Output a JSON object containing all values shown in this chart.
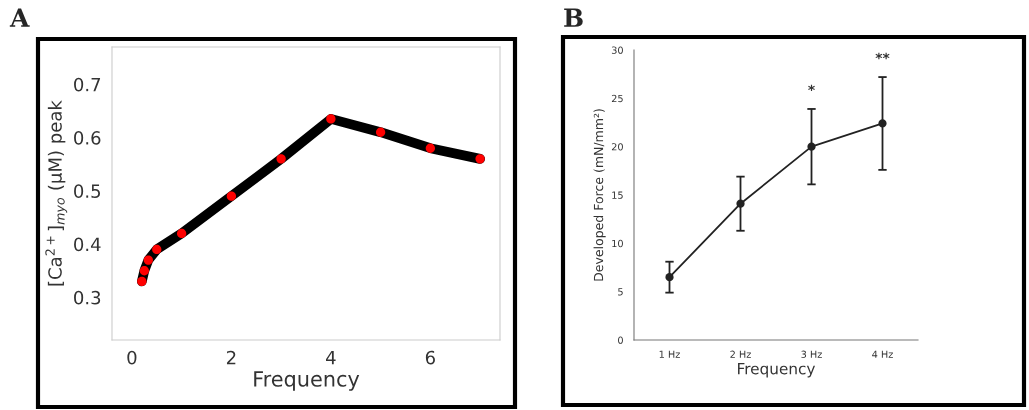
{
  "chart_data": [
    {
      "type": "line",
      "title": "A",
      "xlabel": "Frequency",
      "ylabel": "[Ca$^{2+}$]$_{myo}$ (μM) peak",
      "x": [
        0.2,
        0.25,
        0.33,
        0.5,
        1,
        2,
        3,
        4,
        5,
        6,
        7
      ],
      "series": [
        {
          "color": "#000000",
          "colors": [
            "#ff0000",
            "#ff0000",
            "#ff0000",
            "#ff0000",
            "#ff0000",
            "#ff0000",
            "#ff0000",
            "#ff0000",
            "#ff0000",
            "#ff0000",
            "#ff0000"
          ],
          "values": [
            0.33,
            0.35,
            0.37,
            0.39,
            0.42,
            0.49,
            0.56,
            0.635,
            0.61,
            0.58,
            0.56
          ]
        }
      ],
      "xlim": [
        -0.4,
        7.4
      ],
      "xticks": [
        0,
        2,
        4,
        6
      ],
      "ylim": [
        0.22,
        0.77
      ],
      "yticks": [
        0.3,
        0.4,
        0.5,
        0.6,
        0.7
      ],
      "marker": "circle",
      "line_style": "solid",
      "grid": false,
      "legend": false
    },
    {
      "type": "line",
      "title": "B",
      "xlabel": "Frequency",
      "ylabel": "Developed Force (mN/mm²)",
      "categories": [
        "1 Hz",
        "2 Hz",
        "3 Hz",
        "4 Hz"
      ],
      "series": [
        {
          "color": "#222222",
          "values": [
            6.5,
            14.1,
            20.0,
            22.4
          ],
          "errors": [
            [
              4.9,
              8.1
            ],
            [
              11.3,
              16.9
            ],
            [
              16.1,
              23.9
            ],
            [
              17.6,
              27.2
            ]
          ]
        }
      ],
      "ylim": [
        0,
        30
      ],
      "yticks": [
        0,
        5,
        10,
        15,
        20,
        25,
        30
      ],
      "annotations": [
        "*",
        "**"
      ],
      "marker": "circle",
      "line_style": "solid",
      "grid": false,
      "legend": false
    }
  ]
}
